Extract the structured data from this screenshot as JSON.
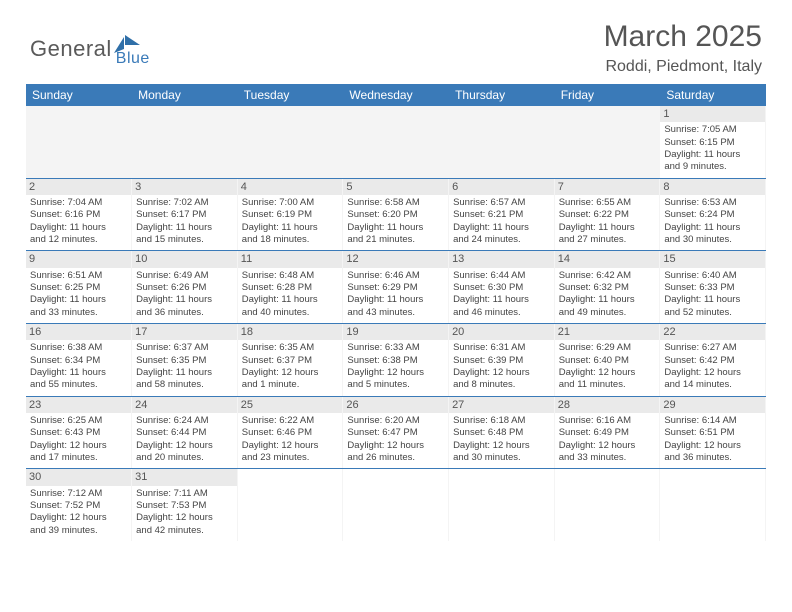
{
  "logo": {
    "text_a": "General",
    "text_b": "Blue",
    "flag_color": "#2f6fa8"
  },
  "title": "March 2025",
  "location": "Roddi, Piedmont, Italy",
  "colors": {
    "header_bg": "#3a7ab8",
    "header_fg": "#ffffff",
    "daynum_bg": "#eaeaea",
    "empty_bg": "#f4f4f4",
    "cell_border": "#3a7ab8",
    "text": "#444444"
  },
  "font": {
    "title_size": 30,
    "location_size": 16,
    "weekday_size": 12,
    "cell_size": 9.5
  },
  "weekdays": [
    "Sunday",
    "Monday",
    "Tuesday",
    "Wednesday",
    "Thursday",
    "Friday",
    "Saturday"
  ],
  "rows": [
    [
      null,
      null,
      null,
      null,
      null,
      null,
      {
        "n": "1",
        "sr": "Sunrise: 7:05 AM",
        "ss": "Sunset: 6:15 PM",
        "d1": "Daylight: 11 hours",
        "d2": "and 9 minutes."
      }
    ],
    [
      {
        "n": "2",
        "sr": "Sunrise: 7:04 AM",
        "ss": "Sunset: 6:16 PM",
        "d1": "Daylight: 11 hours",
        "d2": "and 12 minutes."
      },
      {
        "n": "3",
        "sr": "Sunrise: 7:02 AM",
        "ss": "Sunset: 6:17 PM",
        "d1": "Daylight: 11 hours",
        "d2": "and 15 minutes."
      },
      {
        "n": "4",
        "sr": "Sunrise: 7:00 AM",
        "ss": "Sunset: 6:19 PM",
        "d1": "Daylight: 11 hours",
        "d2": "and 18 minutes."
      },
      {
        "n": "5",
        "sr": "Sunrise: 6:58 AM",
        "ss": "Sunset: 6:20 PM",
        "d1": "Daylight: 11 hours",
        "d2": "and 21 minutes."
      },
      {
        "n": "6",
        "sr": "Sunrise: 6:57 AM",
        "ss": "Sunset: 6:21 PM",
        "d1": "Daylight: 11 hours",
        "d2": "and 24 minutes."
      },
      {
        "n": "7",
        "sr": "Sunrise: 6:55 AM",
        "ss": "Sunset: 6:22 PM",
        "d1": "Daylight: 11 hours",
        "d2": "and 27 minutes."
      },
      {
        "n": "8",
        "sr": "Sunrise: 6:53 AM",
        "ss": "Sunset: 6:24 PM",
        "d1": "Daylight: 11 hours",
        "d2": "and 30 minutes."
      }
    ],
    [
      {
        "n": "9",
        "sr": "Sunrise: 6:51 AM",
        "ss": "Sunset: 6:25 PM",
        "d1": "Daylight: 11 hours",
        "d2": "and 33 minutes."
      },
      {
        "n": "10",
        "sr": "Sunrise: 6:49 AM",
        "ss": "Sunset: 6:26 PM",
        "d1": "Daylight: 11 hours",
        "d2": "and 36 minutes."
      },
      {
        "n": "11",
        "sr": "Sunrise: 6:48 AM",
        "ss": "Sunset: 6:28 PM",
        "d1": "Daylight: 11 hours",
        "d2": "and 40 minutes."
      },
      {
        "n": "12",
        "sr": "Sunrise: 6:46 AM",
        "ss": "Sunset: 6:29 PM",
        "d1": "Daylight: 11 hours",
        "d2": "and 43 minutes."
      },
      {
        "n": "13",
        "sr": "Sunrise: 6:44 AM",
        "ss": "Sunset: 6:30 PM",
        "d1": "Daylight: 11 hours",
        "d2": "and 46 minutes."
      },
      {
        "n": "14",
        "sr": "Sunrise: 6:42 AM",
        "ss": "Sunset: 6:32 PM",
        "d1": "Daylight: 11 hours",
        "d2": "and 49 minutes."
      },
      {
        "n": "15",
        "sr": "Sunrise: 6:40 AM",
        "ss": "Sunset: 6:33 PM",
        "d1": "Daylight: 11 hours",
        "d2": "and 52 minutes."
      }
    ],
    [
      {
        "n": "16",
        "sr": "Sunrise: 6:38 AM",
        "ss": "Sunset: 6:34 PM",
        "d1": "Daylight: 11 hours",
        "d2": "and 55 minutes."
      },
      {
        "n": "17",
        "sr": "Sunrise: 6:37 AM",
        "ss": "Sunset: 6:35 PM",
        "d1": "Daylight: 11 hours",
        "d2": "and 58 minutes."
      },
      {
        "n": "18",
        "sr": "Sunrise: 6:35 AM",
        "ss": "Sunset: 6:37 PM",
        "d1": "Daylight: 12 hours",
        "d2": "and 1 minute."
      },
      {
        "n": "19",
        "sr": "Sunrise: 6:33 AM",
        "ss": "Sunset: 6:38 PM",
        "d1": "Daylight: 12 hours",
        "d2": "and 5 minutes."
      },
      {
        "n": "20",
        "sr": "Sunrise: 6:31 AM",
        "ss": "Sunset: 6:39 PM",
        "d1": "Daylight: 12 hours",
        "d2": "and 8 minutes."
      },
      {
        "n": "21",
        "sr": "Sunrise: 6:29 AM",
        "ss": "Sunset: 6:40 PM",
        "d1": "Daylight: 12 hours",
        "d2": "and 11 minutes."
      },
      {
        "n": "22",
        "sr": "Sunrise: 6:27 AM",
        "ss": "Sunset: 6:42 PM",
        "d1": "Daylight: 12 hours",
        "d2": "and 14 minutes."
      }
    ],
    [
      {
        "n": "23",
        "sr": "Sunrise: 6:25 AM",
        "ss": "Sunset: 6:43 PM",
        "d1": "Daylight: 12 hours",
        "d2": "and 17 minutes."
      },
      {
        "n": "24",
        "sr": "Sunrise: 6:24 AM",
        "ss": "Sunset: 6:44 PM",
        "d1": "Daylight: 12 hours",
        "d2": "and 20 minutes."
      },
      {
        "n": "25",
        "sr": "Sunrise: 6:22 AM",
        "ss": "Sunset: 6:46 PM",
        "d1": "Daylight: 12 hours",
        "d2": "and 23 minutes."
      },
      {
        "n": "26",
        "sr": "Sunrise: 6:20 AM",
        "ss": "Sunset: 6:47 PM",
        "d1": "Daylight: 12 hours",
        "d2": "and 26 minutes."
      },
      {
        "n": "27",
        "sr": "Sunrise: 6:18 AM",
        "ss": "Sunset: 6:48 PM",
        "d1": "Daylight: 12 hours",
        "d2": "and 30 minutes."
      },
      {
        "n": "28",
        "sr": "Sunrise: 6:16 AM",
        "ss": "Sunset: 6:49 PM",
        "d1": "Daylight: 12 hours",
        "d2": "and 33 minutes."
      },
      {
        "n": "29",
        "sr": "Sunrise: 6:14 AM",
        "ss": "Sunset: 6:51 PM",
        "d1": "Daylight: 12 hours",
        "d2": "and 36 minutes."
      }
    ],
    [
      {
        "n": "30",
        "sr": "Sunrise: 7:12 AM",
        "ss": "Sunset: 7:52 PM",
        "d1": "Daylight: 12 hours",
        "d2": "and 39 minutes."
      },
      {
        "n": "31",
        "sr": "Sunrise: 7:11 AM",
        "ss": "Sunset: 7:53 PM",
        "d1": "Daylight: 12 hours",
        "d2": "and 42 minutes."
      },
      null,
      null,
      null,
      null,
      null
    ]
  ]
}
